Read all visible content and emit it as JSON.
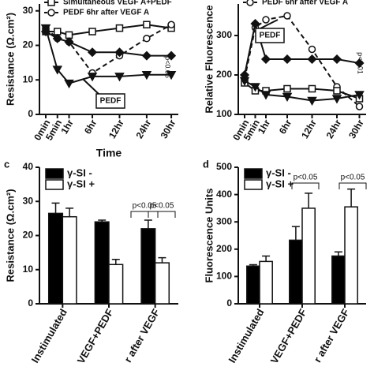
{
  "chart_data": [
    {
      "type": "line",
      "ylabel": "Resistance (Ω.cm²)",
      "xlabel": "Time",
      "categories": [
        "0min",
        "5min",
        "1hr",
        "6hr",
        "12hr",
        "24hr",
        "30hr"
      ],
      "ylim": [
        0,
        32
      ],
      "yticks": [
        0,
        10,
        20,
        30
      ],
      "series": [
        {
          "name": "Simultaneous VEGF A+PEDF",
          "marker": "square",
          "color": "#fff",
          "values": [
            24,
            24,
            23,
            24,
            25,
            26,
            25
          ]
        },
        {
          "name": "PEDF 6hr after VEGF A",
          "marker": "circle",
          "color": "#fff",
          "dashed": true,
          "values": [
            25,
            22,
            21,
            12,
            17,
            22,
            26
          ]
        },
        {
          "marker": "diamond",
          "color": "#111",
          "values": [
            24,
            22,
            21,
            18,
            18,
            17,
            17
          ]
        },
        {
          "marker": "triangle",
          "color": "#111",
          "values": [
            25,
            13,
            9,
            11,
            11,
            11.5,
            11.5
          ]
        }
      ],
      "annotations": [
        "PEDF",
        "p<0.05"
      ]
    },
    {
      "type": "line",
      "ylabel": "Relative Fluorescence",
      "categories": [
        "0min",
        "5min",
        "1hr",
        "6hr",
        "12hr",
        "24hr",
        "30hr"
      ],
      "ylim": [
        100,
        380
      ],
      "yticks": [
        100,
        200,
        300
      ],
      "series": [
        {
          "name": "PEDF 6hr after VEGF A",
          "marker": "circle",
          "color": "#fff",
          "dashed": true,
          "values": [
            190,
            320,
            340,
            350,
            265,
            170,
            120
          ]
        },
        {
          "marker": "diamond",
          "color": "#111",
          "values": [
            200,
            330,
            240,
            240,
            240,
            240,
            230
          ]
        },
        {
          "marker": "square",
          "color": "#fff",
          "values": [
            180,
            160,
            160,
            165,
            165,
            160,
            140
          ]
        },
        {
          "marker": "triangle",
          "color": "#111",
          "values": [
            185,
            170,
            150,
            145,
            135,
            140,
            150
          ]
        }
      ],
      "annotations": [
        "PEDF",
        "p<0.01"
      ]
    },
    {
      "type": "bar",
      "panel": "c",
      "ylabel": "Resistance (Ω.cm²)",
      "categories": [
        "Instimulated",
        "VEGF+PEDF",
        "r after VEGF"
      ],
      "ylim": [
        0,
        40
      ],
      "yticks": [
        0,
        10,
        20,
        30,
        40
      ],
      "series": [
        {
          "name": "γ-SI -",
          "color": "#000",
          "values": [
            26.5,
            24,
            22
          ],
          "errors": [
            3,
            0.5,
            2.5
          ]
        },
        {
          "name": "γ-SI +",
          "color": "#fff",
          "values": [
            25.5,
            11.5,
            12
          ],
          "errors": [
            2.5,
            1.5,
            1.5
          ]
        }
      ],
      "annotations": [
        "p<0.05",
        "p<0.05"
      ]
    },
    {
      "type": "bar",
      "panel": "d",
      "ylabel": "Fluorescence Units",
      "categories": [
        "Instimulated",
        "VEGF+PEDF",
        "r after VEGF"
      ],
      "ylim": [
        0,
        500
      ],
      "yticks": [
        0,
        100,
        200,
        300,
        400,
        500
      ],
      "series": [
        {
          "name": "γ-SI -",
          "color": "#000",
          "values": [
            138,
            233,
            175
          ],
          "errors": [
            5,
            50,
            15
          ]
        },
        {
          "name": "γ-SI +",
          "color": "#fff",
          "values": [
            155,
            350,
            355
          ],
          "errors": [
            20,
            55,
            65
          ]
        }
      ],
      "annotations": [
        "p<0.05",
        "p<0.05"
      ]
    }
  ]
}
